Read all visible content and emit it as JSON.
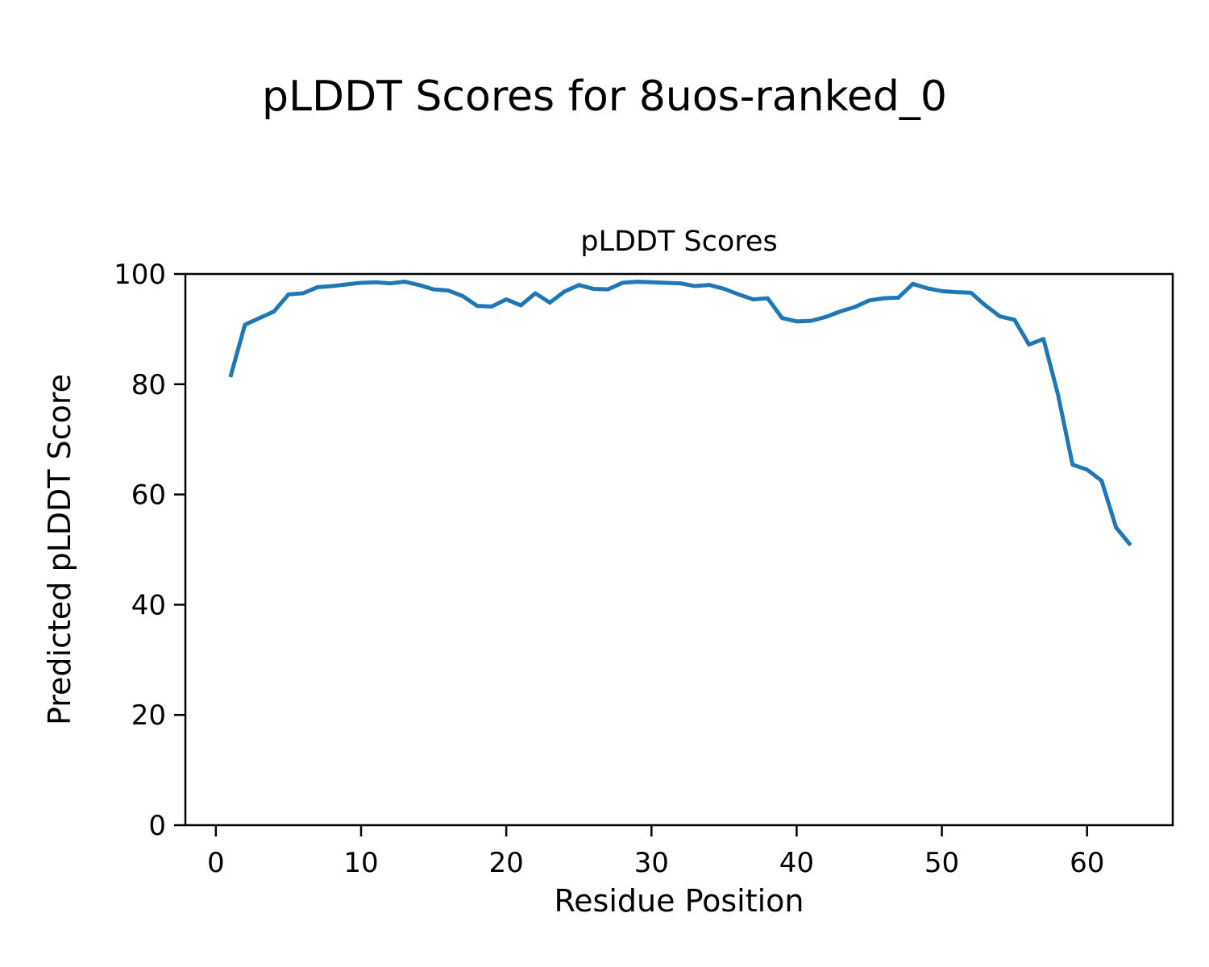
{
  "figure": {
    "suptitle": "pLDDT Scores for 8uos-ranked_0",
    "background_color": "#ffffff",
    "text_color": "#000000"
  },
  "chart_data": {
    "type": "line",
    "title": "pLDDT Scores",
    "xlabel": "Residue Position",
    "ylabel": "Predicted pLDDT Score",
    "series": [
      {
        "name": "pLDDT",
        "color": "#1f77b4",
        "x": [
          1,
          2,
          3,
          4,
          5,
          6,
          7,
          8,
          9,
          10,
          11,
          12,
          13,
          14,
          15,
          16,
          17,
          18,
          19,
          20,
          21,
          22,
          23,
          24,
          25,
          26,
          27,
          28,
          29,
          30,
          31,
          32,
          33,
          34,
          35,
          36,
          37,
          38,
          39,
          40,
          41,
          42,
          43,
          44,
          45,
          46,
          47,
          48,
          49,
          50,
          51,
          52,
          53,
          54,
          55,
          56,
          57,
          58,
          59,
          60,
          61,
          62,
          63
        ],
        "y": [
          81.3,
          90.8,
          92.0,
          93.2,
          96.3,
          96.5,
          97.6,
          97.8,
          98.1,
          98.4,
          98.5,
          98.3,
          98.6,
          98.0,
          97.2,
          97.0,
          96.0,
          94.2,
          94.1,
          95.4,
          94.3,
          96.5,
          94.8,
          96.8,
          98.0,
          97.3,
          97.2,
          98.4,
          98.6,
          98.5,
          98.4,
          98.3,
          97.8,
          98.0,
          97.3,
          96.3,
          95.4,
          95.6,
          92.0,
          91.4,
          91.5,
          92.2,
          93.2,
          94.0,
          95.2,
          95.6,
          95.7,
          98.2,
          97.4,
          96.9,
          96.7,
          96.6,
          94.3,
          92.3,
          91.7,
          87.2,
          88.2,
          78.1,
          65.4,
          64.5,
          62.5,
          54.0,
          50.8
        ]
      }
    ],
    "xlim": [
      -2.1,
      65.9
    ],
    "ylim": [
      0,
      100
    ],
    "xticks": [
      0,
      10,
      20,
      30,
      40,
      50,
      60
    ],
    "yticks": [
      0,
      20,
      40,
      60,
      80,
      100
    ],
    "grid": false,
    "legend_position": "none",
    "axis_color": "#000000",
    "line_width": 5
  }
}
